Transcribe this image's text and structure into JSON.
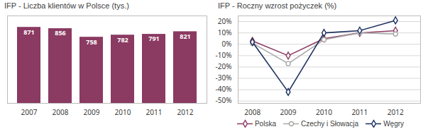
{
  "chart_data": [
    {
      "type": "bar",
      "title": "IFP - Liczba klientów w Polsce (tys.)",
      "categories": [
        "2007",
        "2008",
        "2009",
        "2010",
        "2011",
        "2012"
      ],
      "values": [
        871,
        856,
        758,
        782,
        791,
        821
      ],
      "color": "#8B3A62",
      "ylim": [
        0,
        1001.65
      ],
      "data_labels": true,
      "tick_labels": "x"
    },
    {
      "type": "line",
      "title": "IFP - Roczny wzrost pożyczek  (%)",
      "x": [
        2008,
        2009,
        2010,
        2011,
        2012
      ],
      "xlim": [
        2007.6,
        2012.7
      ],
      "xticks": [
        2008,
        2009,
        2010,
        2011,
        2012
      ],
      "series": [
        {
          "name": "Polska",
          "color": "#8B3A62",
          "marker": "diamond",
          "values": [
            3,
            -10,
            5,
            10,
            12
          ]
        },
        {
          "name": "Czechy i Słowacja",
          "color": "#A8A8A8",
          "marker": "circle",
          "values": [
            1,
            -17,
            4,
            10,
            9
          ]
        },
        {
          "name": "Węgry",
          "color": "#1C2F5E",
          "marker": "diamond",
          "values": [
            2,
            -42,
            10,
            12,
            21
          ]
        }
      ],
      "ylim": [
        -52,
        25
      ],
      "yticks": [
        {
          "value": -50,
          "label": "-50%"
        },
        {
          "value": -40,
          "label": "-40%"
        },
        {
          "value": -30,
          "label": "-30%"
        },
        {
          "value": -20,
          "label": "-20%"
        },
        {
          "value": -10,
          "label": "-10%"
        },
        {
          "value": 0,
          "label": "0%"
        },
        {
          "value": 10,
          "label": "10%"
        },
        {
          "value": 20,
          "label": "20%"
        }
      ],
      "grid": true,
      "legend": "bottom"
    }
  ]
}
